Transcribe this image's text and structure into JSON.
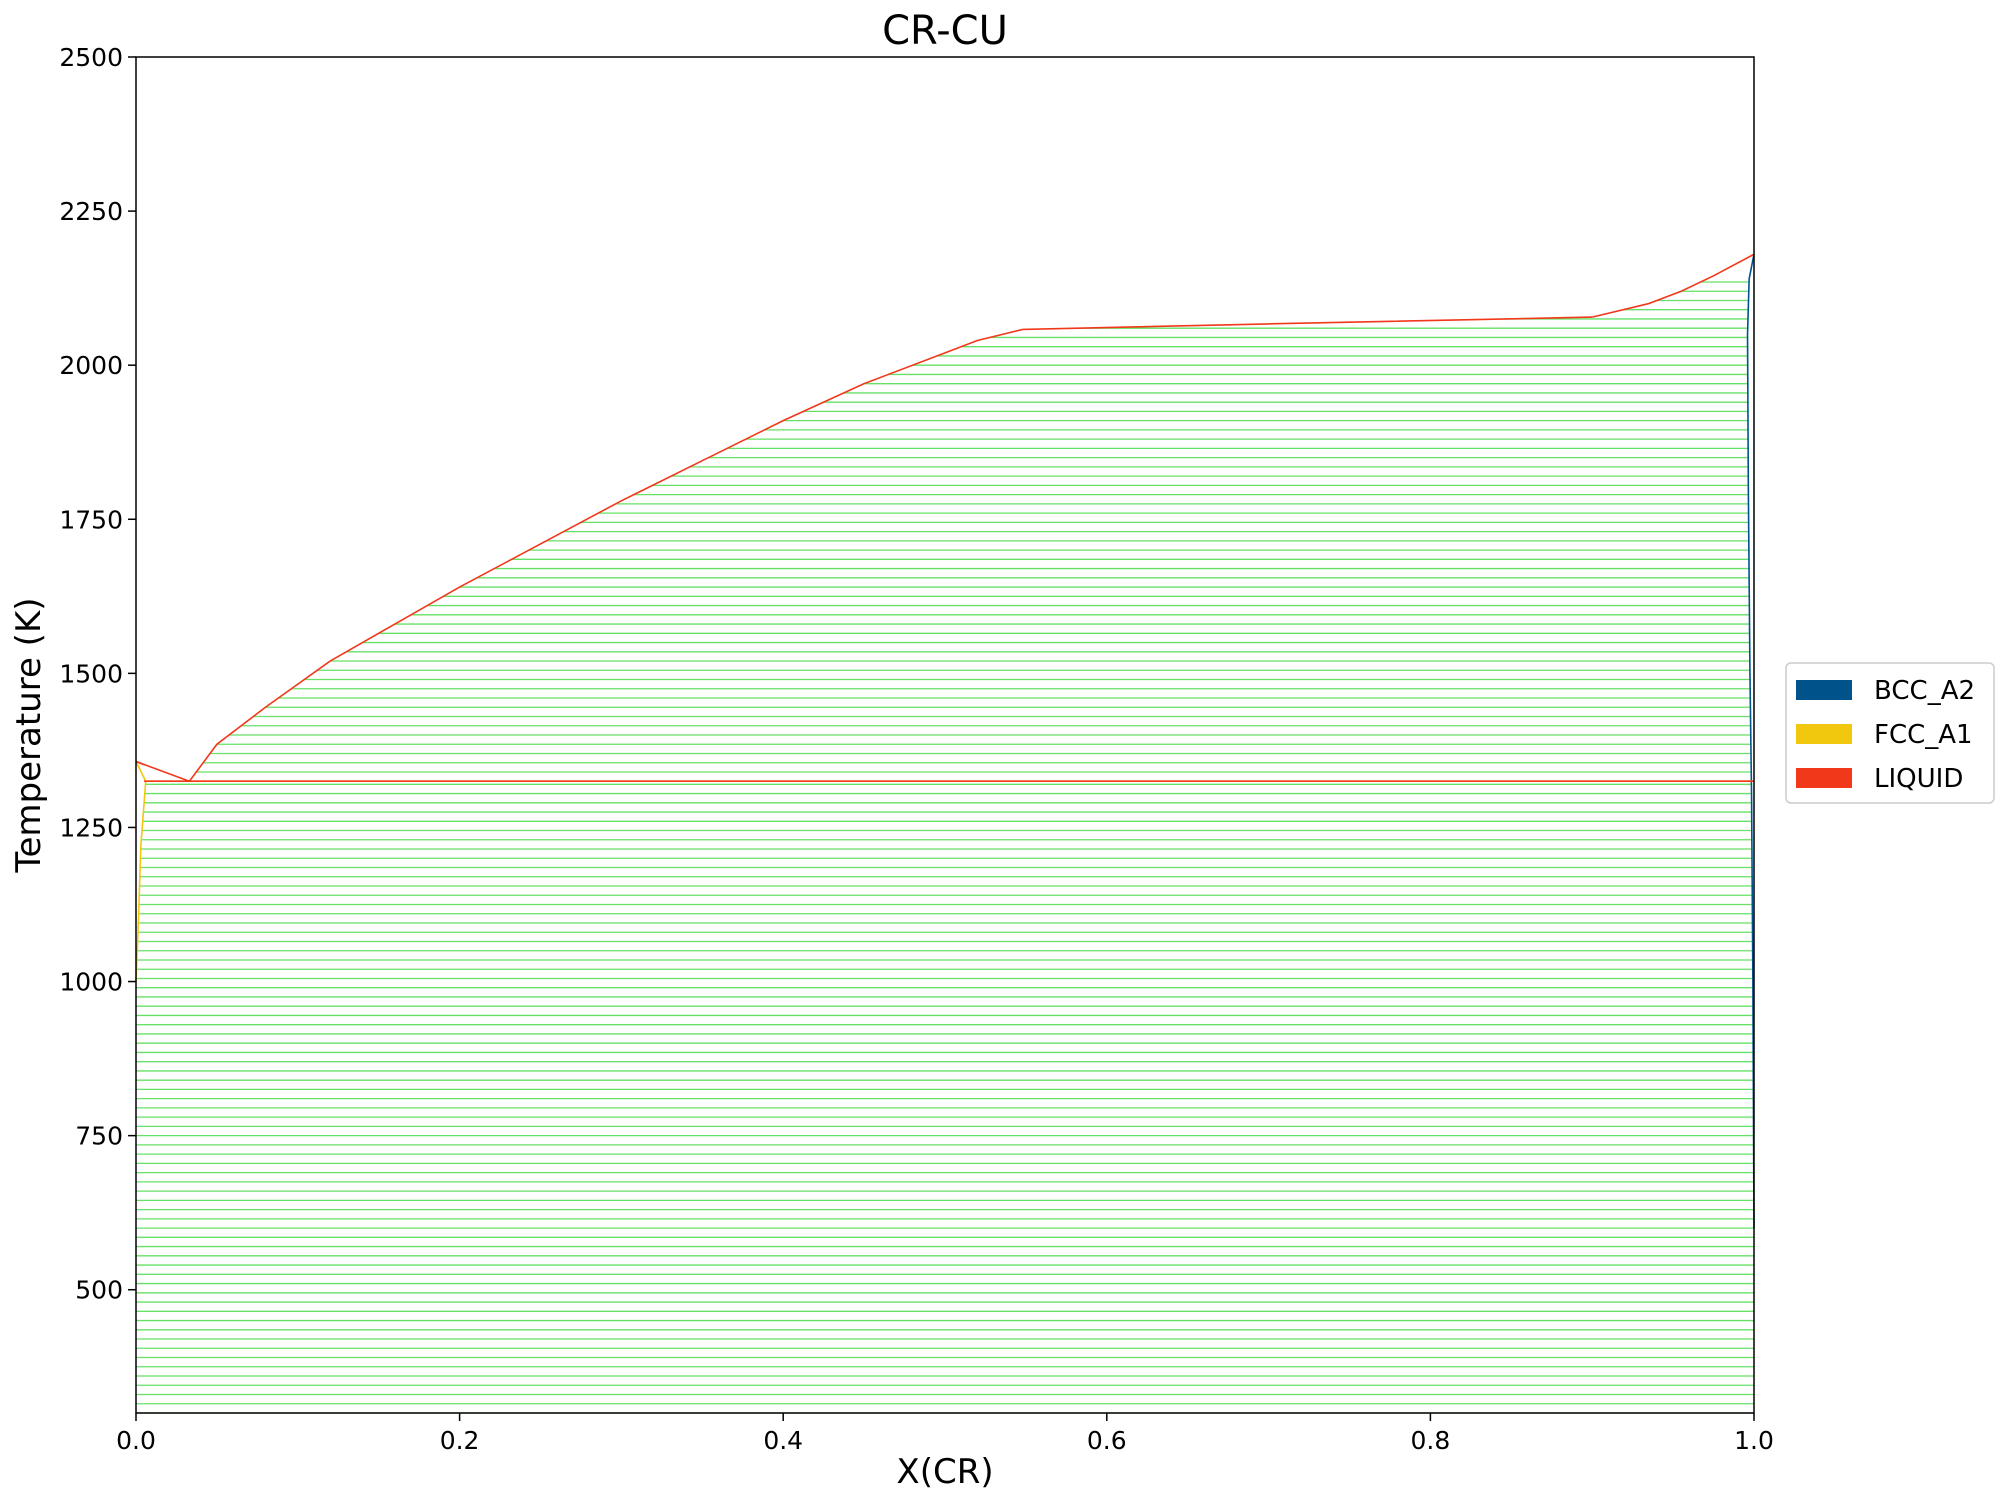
{
  "chart_data": {
    "type": "line",
    "title": "CR-CU",
    "xlabel": "X(CR)",
    "ylabel": "Temperature (K)",
    "xlim": [
      0.0,
      1.0
    ],
    "ylim": [
      300,
      2500
    ],
    "xticks": [
      0.0,
      0.2,
      0.4,
      0.6,
      0.8,
      1.0
    ],
    "xtick_labels": [
      "0.0",
      "0.2",
      "0.4",
      "0.6",
      "0.8",
      "1.0"
    ],
    "yticks": [
      500,
      750,
      1000,
      1250,
      1500,
      1750,
      2000,
      2250,
      2500
    ],
    "ytick_labels": [
      "500",
      "750",
      "1000",
      "1250",
      "1500",
      "1750",
      "2000",
      "2250",
      "2500"
    ],
    "grid": false,
    "legend_placement": "outside-right",
    "legend": [
      {
        "name": "BCC_A2",
        "color": "#00538a"
      },
      {
        "name": "FCC_A1",
        "color": "#f2c80f"
      },
      {
        "name": "LIQUID",
        "color": "#f2381b"
      }
    ],
    "tie_line_color": "#66e066",
    "eutectic_temperature": 1325,
    "series": [
      {
        "name": "LIQUID",
        "color": "#f2381b",
        "lines": [
          [
            [
              0.0,
              1357
            ],
            [
              0.033,
              1325
            ]
          ],
          [
            [
              0.033,
              1325
            ],
            [
              0.05,
              1385
            ],
            [
              0.08,
              1445
            ],
            [
              0.12,
              1520
            ],
            [
              0.16,
              1580
            ],
            [
              0.2,
              1640
            ],
            [
              0.25,
              1710
            ],
            [
              0.3,
              1780
            ],
            [
              0.35,
              1845
            ],
            [
              0.4,
              1910
            ],
            [
              0.45,
              1970
            ],
            [
              0.5,
              2020
            ],
            [
              0.52,
              2040
            ],
            [
              0.548,
              2058
            ]
          ],
          [
            [
              0.548,
              2058
            ],
            [
              0.7,
              2067
            ],
            [
              0.9,
              2078
            ]
          ],
          [
            [
              0.9,
              2078
            ],
            [
              0.935,
              2100
            ],
            [
              0.955,
              2120
            ],
            [
              0.975,
              2145
            ],
            [
              1.0,
              2180
            ]
          ],
          [
            [
              0.0,
              1357
            ],
            [
              0.005,
              1352
            ]
          ],
          [
            [
              0.005,
              1325
            ],
            [
              1.0,
              1325
            ]
          ]
        ]
      },
      {
        "name": "FCC_A1",
        "color": "#f2c80f",
        "lines": [
          [
            [
              0.0,
              1357
            ],
            [
              0.006,
              1325
            ]
          ],
          [
            [
              0.006,
              1325
            ],
            [
              0.003,
              1220
            ],
            [
              0.0015,
              1100
            ],
            [
              0.0,
              1000
            ]
          ],
          [
            [
              0.006,
              1325
            ],
            [
              1.0,
              1325
            ]
          ]
        ]
      },
      {
        "name": "BCC_A2",
        "color": "#00538a",
        "lines": [
          [
            [
              1.0,
              2180
            ],
            [
              0.997,
              2140
            ],
            [
              0.996,
              2050
            ],
            [
              0.9965,
              1800
            ],
            [
              0.9975,
              1500
            ],
            [
              0.9985,
              1300
            ],
            [
              0.9993,
              1000
            ],
            [
              1.0,
              600
            ]
          ]
        ]
      }
    ],
    "tie_line_regions": [
      {
        "t_min": 300,
        "t_max": 1325,
        "x_left": [
          [
            300,
            0.0
          ],
          [
            1000,
            0.0
          ],
          [
            1100,
            0.0015
          ],
          [
            1220,
            0.003
          ],
          [
            1325,
            0.006
          ]
        ],
        "x_right": [
          [
            300,
            1.0
          ],
          [
            600,
            1.0
          ],
          [
            1000,
            0.9993
          ],
          [
            1325,
            0.9985
          ]
        ]
      },
      {
        "t_min": 1325,
        "t_max": 2145,
        "x_left": [
          [
            1325,
            0.033
          ],
          [
            1385,
            0.05
          ],
          [
            1445,
            0.08
          ],
          [
            1520,
            0.12
          ],
          [
            1580,
            0.16
          ],
          [
            1640,
            0.2
          ],
          [
            1710,
            0.25
          ],
          [
            1780,
            0.3
          ],
          [
            1845,
            0.35
          ],
          [
            1910,
            0.4
          ],
          [
            1970,
            0.45
          ],
          [
            2020,
            0.5
          ],
          [
            2040,
            0.52
          ],
          [
            2058,
            0.548
          ],
          [
            2067,
            0.7
          ],
          [
            2078,
            0.9
          ],
          [
            2100,
            0.935
          ],
          [
            2120,
            0.955
          ],
          [
            2145,
            0.975
          ]
        ],
        "x_right": [
          [
            1325,
            0.9985
          ],
          [
            1500,
            0.9975
          ],
          [
            1800,
            0.9965
          ],
          [
            2050,
            0.996
          ],
          [
            2145,
            0.997
          ]
        ]
      }
    ]
  }
}
